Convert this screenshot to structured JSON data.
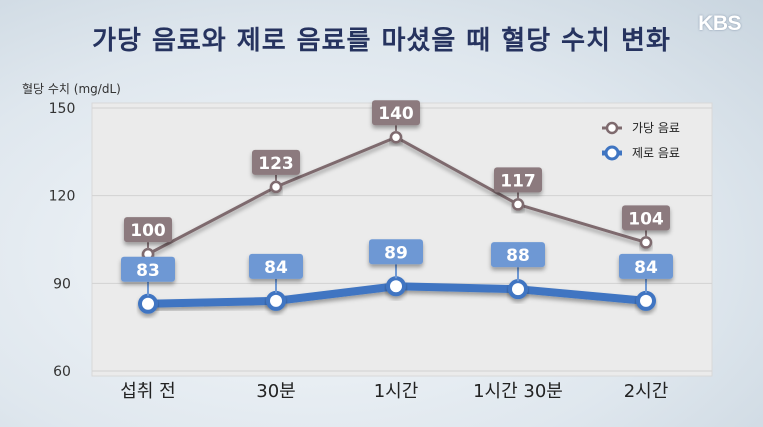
{
  "title": "가당 음료와 제로 음료를 마셨을 때 혈당 수치 변화",
  "logo": "KBS",
  "colors": {
    "sugar": "#7e6a6e",
    "sugar_label": "#8c7a7e",
    "zero": "#3f75c2",
    "zero_label": "#6e98d4",
    "plot_bg": "#ebebeb"
  },
  "chart_data": {
    "type": "line",
    "ylabel": "혈당 수치 (mg/dL)",
    "categories": [
      "섭취 전",
      "30분",
      "1시간",
      "1시간 30분",
      "2시간"
    ],
    "ylim": [
      60,
      150
    ],
    "yticks": [
      60,
      90,
      120,
      150
    ],
    "grid": true,
    "legend_position": "top-right",
    "series": [
      {
        "name": "가당 음료",
        "values": [
          100,
          123,
          140,
          117,
          104
        ]
      },
      {
        "name": "제로 음료",
        "values": [
          83,
          84,
          89,
          88,
          84
        ]
      }
    ]
  }
}
